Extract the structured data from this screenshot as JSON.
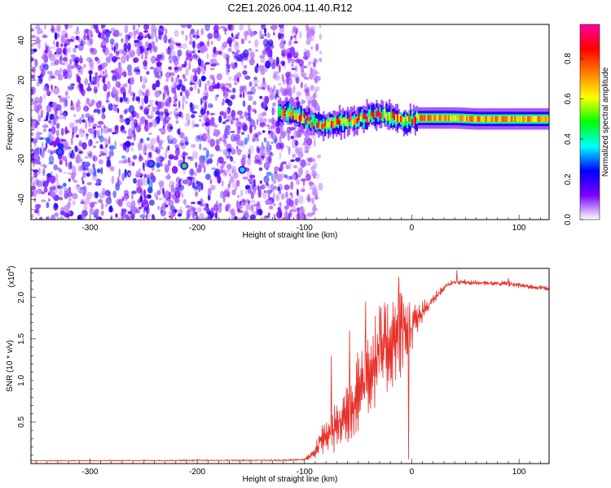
{
  "chart_data": [
    {
      "type": "heatmap",
      "title": "C2E1.2026.004.11.40.R12",
      "xlabel": "Height of straight line (km)",
      "ylabel": "Frequency (Hz)",
      "xlim": [
        -355,
        128
      ],
      "ylim": [
        -50,
        48
      ],
      "xticks": [
        -300,
        -200,
        -100,
        0,
        100
      ],
      "yticks": [
        -40,
        -20,
        0,
        20,
        40
      ],
      "colorbar": {
        "label": "Normalized spectral amplitude",
        "range": [
          0,
          0.97
        ],
        "ticks": [
          0.0,
          0.2,
          0.4,
          0.6,
          0.8
        ],
        "colors": [
          "#ffffff",
          "#7a00ff",
          "#0000ff",
          "#00ffff",
          "#00ff00",
          "#ffff00",
          "#ff8000",
          "#ff0000",
          "#ff00a0"
        ]
      },
      "signal_trace": [
        [
          -125,
          3
        ],
        [
          -115,
          4
        ],
        [
          -105,
          2
        ],
        [
          -95,
          -1
        ],
        [
          -85,
          -2
        ],
        [
          -75,
          -2
        ],
        [
          -65,
          -1
        ],
        [
          -55,
          0
        ],
        [
          -45,
          1
        ],
        [
          -35,
          3
        ],
        [
          -28,
          3
        ],
        [
          -22,
          2
        ],
        [
          -15,
          0
        ],
        [
          -8,
          -1
        ],
        [
          -2,
          0
        ],
        [
          5,
          1
        ],
        [
          20,
          1
        ],
        [
          40,
          1
        ],
        [
          60,
          0.5
        ],
        [
          80,
          0.5
        ],
        [
          100,
          0.5
        ],
        [
          128,
          0.5
        ]
      ],
      "hotspots": [
        {
          "x": -328,
          "y": -16,
          "amplitude": 0.3
        },
        {
          "x": -243,
          "y": -22,
          "amplitude": 0.3
        },
        {
          "x": -212,
          "y": -23,
          "amplitude": 0.45
        },
        {
          "x": -158,
          "y": -25,
          "amplitude": 0.35
        }
      ],
      "noise_boundary_x": -100
    },
    {
      "type": "line",
      "xlabel": "Height of straight line (km)",
      "ylabel": "SNR (10 * v/v)",
      "y_multiplier": "(x10",
      "y_multiplier_exp": "4",
      "y_multiplier_close": ")",
      "xlim": [
        -355,
        128
      ],
      "ylim": [
        0,
        2.35
      ],
      "xticks": [
        -300,
        -200,
        -100,
        0,
        100
      ],
      "yticks": [
        0.5,
        1.0,
        1.5,
        2.0
      ],
      "ytick_labels": [
        "0.5",
        "1.0",
        "1.5",
        "2.0"
      ],
      "color": "#e8312b",
      "envelope": [
        [
          -355,
          0.03,
          0.04
        ],
        [
          -120,
          0.03,
          0.05
        ],
        [
          -100,
          0.04,
          0.06
        ],
        [
          -92,
          0.05,
          0.18
        ],
        [
          -85,
          0.08,
          0.45
        ],
        [
          -75,
          0.12,
          0.62
        ],
        [
          -65,
          0.15,
          0.9
        ],
        [
          -55,
          0.3,
          1.2
        ],
        [
          -45,
          0.45,
          1.55
        ],
        [
          -35,
          0.65,
          1.8
        ],
        [
          -25,
          0.8,
          1.95
        ],
        [
          -15,
          0.95,
          2.1
        ],
        [
          -8,
          1.05,
          2.2
        ],
        [
          0,
          1.35,
          1.95
        ],
        [
          8,
          1.6,
          1.95
        ],
        [
          20,
          1.9,
          2.05
        ],
        [
          30,
          2.08,
          2.15
        ],
        [
          38,
          2.15,
          2.22
        ],
        [
          50,
          2.15,
          2.22
        ],
        [
          70,
          2.14,
          2.2
        ],
        [
          90,
          2.13,
          2.2
        ],
        [
          110,
          2.1,
          2.16
        ],
        [
          128,
          2.08,
          2.14
        ]
      ],
      "spikes": [
        [
          -75,
          1.3
        ],
        [
          -58,
          1.6
        ],
        [
          -43,
          1.95
        ],
        [
          -30,
          1.9
        ],
        [
          -12,
          2.25
        ],
        [
          -8,
          1.6
        ],
        [
          -3,
          0.05
        ],
        [
          42,
          2.33
        ],
        [
          90,
          2.23
        ]
      ]
    }
  ]
}
